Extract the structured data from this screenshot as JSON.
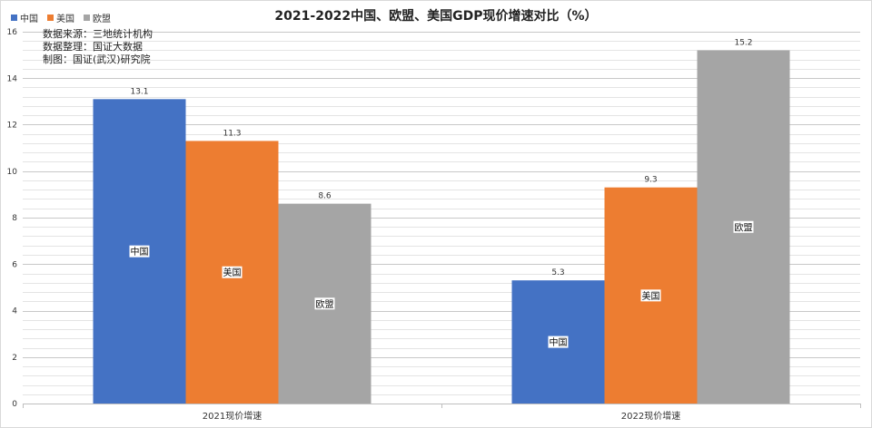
{
  "chart_data": {
    "type": "bar",
    "title": "2021-2022中国、欧盟、美国GDP现价增速对比（%）",
    "categories": [
      "2021现价增速",
      "2022现价增速"
    ],
    "series": [
      {
        "name": "中国",
        "values": [
          13.1,
          5.3
        ],
        "color": "#4472c4"
      },
      {
        "name": "美国",
        "values": [
          11.3,
          9.3
        ],
        "color": "#ed7d31"
      },
      {
        "name": "欧盟",
        "values": [
          8.6,
          15.2
        ],
        "color": "#a5a5a5"
      }
    ],
    "ylim": [
      0,
      16
    ],
    "yticks": [
      0,
      2,
      4,
      6,
      8,
      10,
      12,
      14,
      16
    ],
    "grid": true,
    "legend_position": "top-left",
    "notes": [
      "数据来源：三地统计机构",
      "数据整理：国证大数据",
      "制图：国证(武汉)研究院"
    ]
  }
}
